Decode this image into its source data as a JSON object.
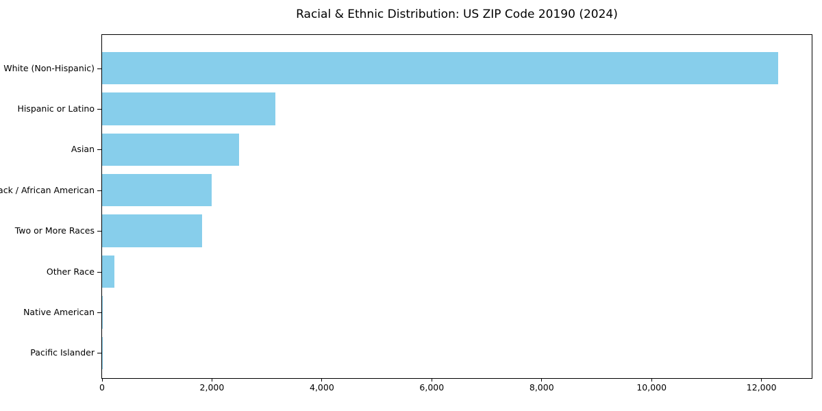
{
  "title": "Racial & Ethnic Distribution: US ZIP Code 20190 (2024)",
  "colors": {
    "bar": "#87CEEB",
    "axis": "#000000",
    "background": "#FFFFFF",
    "text": "#000000"
  },
  "chart_data": {
    "type": "bar",
    "orientation": "horizontal",
    "title": "Racial & Ethnic Distribution: US ZIP Code 20190 (2024)",
    "categories": [
      "White (Non-Hispanic)",
      "Hispanic or Latino",
      "Asian",
      "Black / African American",
      "Two or More Races",
      "Other Race",
      "Native American",
      "Pacific Islander"
    ],
    "values": [
      12300,
      3150,
      2490,
      2000,
      1820,
      230,
      15,
      5
    ],
    "xlabel": "",
    "ylabel": "",
    "xlim": [
      0,
      12914
    ],
    "x_ticks": [
      0,
      2000,
      4000,
      6000,
      8000,
      10000,
      12000
    ],
    "x_tick_labels": [
      "0",
      "2,000",
      "4,000",
      "6,000",
      "8,000",
      "10,000",
      "12,000"
    ],
    "bar_color": "#87CEEB",
    "grid": false,
    "legend": "none"
  }
}
